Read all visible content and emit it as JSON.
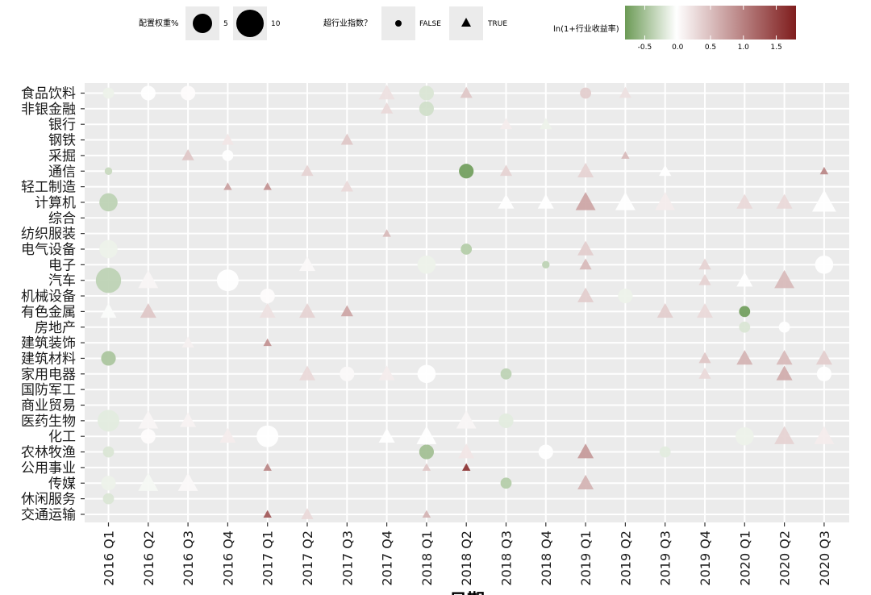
{
  "chart_data": {
    "type": "scatter",
    "xlabel": "日期",
    "x_ticks": [
      "2016 Q1",
      "2016 Q2",
      "2016 Q3",
      "2016 Q4",
      "2017 Q1",
      "2017 Q2",
      "2017 Q3",
      "2017 Q4",
      "2018 Q1",
      "2018 Q2",
      "2018 Q3",
      "2018 Q4",
      "2019 Q1",
      "2019 Q2",
      "2019 Q3",
      "2019 Q4",
      "2020 Q1",
      "2020 Q2",
      "2020 Q3"
    ],
    "y_ticks": [
      "食品饮料",
      "非银金融",
      "银行",
      "钢铁",
      "采掘",
      "通信",
      "轻工制造",
      "计算机",
      "综合",
      "纺织服装",
      "电气设备",
      "电子",
      "汽车",
      "机械设备",
      "有色金属",
      "房地产",
      "建筑装饰",
      "建筑材料",
      "家用电器",
      "国防军工",
      "商业贸易",
      "医药生物",
      "化工",
      "农林牧渔",
      "公用事业",
      "传媒",
      "休闲服务",
      "交通运输"
    ],
    "legend": {
      "size_title": "配置权重%",
      "size_labels": [
        "5",
        "10"
      ],
      "shape_title": "超行业指数？",
      "shape_labels": [
        "FALSE",
        "TRUE"
      ],
      "color_title": "ln(1+行业收益率)",
      "color_ticks": [
        "-0.5",
        "0.0",
        "0.5",
        "1.0",
        "1.5"
      ],
      "color_range": [
        -0.8,
        1.8
      ],
      "color_low": "#6b9a55",
      "color_mid": "#ffffff",
      "color_high": "#7f1d1d"
    },
    "grid": true,
    "points": [
      {
        "x": "2016 Q1",
        "y": "计算机",
        "weight": 4,
        "above_index": false,
        "ln_return": -0.35
      },
      {
        "x": "2016 Q1",
        "y": "汽车",
        "weight": 6,
        "above_index": false,
        "ln_return": -0.35
      },
      {
        "x": "2016 Q1",
        "y": "建筑材料",
        "weight": 3,
        "above_index": false,
        "ln_return": -0.45
      },
      {
        "x": "2016 Q1",
        "y": "医药生物",
        "weight": 5,
        "above_index": false,
        "ln_return": -0.15
      },
      {
        "x": "2016 Q1",
        "y": "电气设备",
        "weight": 4,
        "above_index": false,
        "ln_return": -0.1
      },
      {
        "x": "2016 Q1",
        "y": "农林牧渔",
        "weight": 2,
        "above_index": false,
        "ln_return": -0.2
      },
      {
        "x": "2016 Q1",
        "y": "传媒",
        "weight": 3,
        "above_index": false,
        "ln_return": -0.1
      },
      {
        "x": "2016 Q1",
        "y": "休闲服务",
        "weight": 2,
        "above_index": false,
        "ln_return": -0.2
      },
      {
        "x": "2016 Q1",
        "y": "通信",
        "weight": 1,
        "above_index": false,
        "ln_return": -0.3
      },
      {
        "x": "2016 Q1",
        "y": "有色金属",
        "weight": 3,
        "above_index": true,
        "ln_return": -0.02
      },
      {
        "x": "2016 Q1",
        "y": "食品饮料",
        "weight": 2,
        "above_index": false,
        "ln_return": -0.1
      },
      {
        "x": "2016 Q2",
        "y": "食品饮料",
        "weight": 3,
        "above_index": false,
        "ln_return": 0.0
      },
      {
        "x": "2016 Q2",
        "y": "有色金属",
        "weight": 3,
        "above_index": true,
        "ln_return": 0.45
      },
      {
        "x": "2016 Q2",
        "y": "传媒",
        "weight": 4,
        "above_index": true,
        "ln_return": -0.05
      },
      {
        "x": "2016 Q2",
        "y": "化工",
        "weight": 3,
        "above_index": false,
        "ln_return": 0.02
      },
      {
        "x": "2016 Q2",
        "y": "汽车",
        "weight": 4,
        "above_index": true,
        "ln_return": 0.08
      },
      {
        "x": "2016 Q2",
        "y": "医药生物",
        "weight": 4,
        "above_index": true,
        "ln_return": 0.08
      },
      {
        "x": "2016 Q3",
        "y": "食品饮料",
        "weight": 3,
        "above_index": false,
        "ln_return": 0.02
      },
      {
        "x": "2016 Q3",
        "y": "采掘",
        "weight": 2,
        "above_index": true,
        "ln_return": 0.45
      },
      {
        "x": "2016 Q3",
        "y": "传媒",
        "weight": 4,
        "above_index": true,
        "ln_return": 0.05
      },
      {
        "x": "2016 Q3",
        "y": "建筑装饰",
        "weight": 2,
        "above_index": true,
        "ln_return": 0.12
      },
      {
        "x": "2016 Q3",
        "y": "医药生物",
        "weight": 3,
        "above_index": true,
        "ln_return": 0.1
      },
      {
        "x": "2016 Q4",
        "y": "汽车",
        "weight": 5,
        "above_index": false,
        "ln_return": 0.0
      },
      {
        "x": "2016 Q4",
        "y": "采掘",
        "weight": 2,
        "above_index": false,
        "ln_return": 0.0
      },
      {
        "x": "2016 Q4",
        "y": "轻工制造",
        "weight": 1,
        "above_index": true,
        "ln_return": 0.75
      },
      {
        "x": "2016 Q4",
        "y": "化工",
        "weight": 3,
        "above_index": true,
        "ln_return": 0.15
      },
      {
        "x": "2016 Q4",
        "y": "钢铁",
        "weight": 2,
        "above_index": true,
        "ln_return": 0.2
      },
      {
        "x": "2017 Q1",
        "y": "轻工制造",
        "weight": 1,
        "above_index": true,
        "ln_return": 0.85
      },
      {
        "x": "2017 Q1",
        "y": "建筑装饰",
        "weight": 1,
        "above_index": true,
        "ln_return": 0.85
      },
      {
        "x": "2017 Q1",
        "y": "公用事业",
        "weight": 1,
        "above_index": true,
        "ln_return": 0.95
      },
      {
        "x": "2017 Q1",
        "y": "交通运输",
        "weight": 1,
        "above_index": true,
        "ln_return": 1.3
      },
      {
        "x": "2017 Q1",
        "y": "化工",
        "weight": 5,
        "above_index": false,
        "ln_return": 0.0
      },
      {
        "x": "2017 Q1",
        "y": "机械设备",
        "weight": 3,
        "above_index": false,
        "ln_return": 0.02
      },
      {
        "x": "2017 Q1",
        "y": "有色金属",
        "weight": 3,
        "above_index": true,
        "ln_return": 0.25
      },
      {
        "x": "2017 Q2",
        "y": "有色金属",
        "weight": 3,
        "above_index": true,
        "ln_return": 0.35
      },
      {
        "x": "2017 Q2",
        "y": "家用电器",
        "weight": 3,
        "above_index": true,
        "ln_return": 0.3
      },
      {
        "x": "2017 Q2",
        "y": "电子",
        "weight": 3,
        "above_index": true,
        "ln_return": 0.05
      },
      {
        "x": "2017 Q2",
        "y": "通信",
        "weight": 2,
        "above_index": true,
        "ln_return": 0.35
      },
      {
        "x": "2017 Q2",
        "y": "交通运输",
        "weight": 2,
        "above_index": true,
        "ln_return": 0.3
      },
      {
        "x": "2017 Q3",
        "y": "钢铁",
        "weight": 2,
        "above_index": true,
        "ln_return": 0.45
      },
      {
        "x": "2017 Q3",
        "y": "有色金属",
        "weight": 2,
        "above_index": true,
        "ln_return": 0.7
      },
      {
        "x": "2017 Q3",
        "y": "家用电器",
        "weight": 3,
        "above_index": false,
        "ln_return": 0.05
      },
      {
        "x": "2017 Q3",
        "y": "轻工制造",
        "weight": 2,
        "above_index": true,
        "ln_return": 0.3
      },
      {
        "x": "2017 Q4",
        "y": "食品饮料",
        "weight": 3,
        "above_index": true,
        "ln_return": 0.25
      },
      {
        "x": "2017 Q4",
        "y": "非银金融",
        "weight": 2,
        "above_index": true,
        "ln_return": 0.3
      },
      {
        "x": "2017 Q4",
        "y": "纺织服装",
        "weight": 1,
        "above_index": true,
        "ln_return": 0.55
      },
      {
        "x": "2017 Q4",
        "y": "家用电器",
        "weight": 3,
        "above_index": true,
        "ln_return": 0.15
      },
      {
        "x": "2017 Q4",
        "y": "化工",
        "weight": 3,
        "above_index": true,
        "ln_return": 0.0
      },
      {
        "x": "2018 Q1",
        "y": "食品饮料",
        "weight": 3,
        "above_index": false,
        "ln_return": -0.2
      },
      {
        "x": "2018 Q1",
        "y": "非银金融",
        "weight": 3,
        "above_index": false,
        "ln_return": -0.25
      },
      {
        "x": "2018 Q1",
        "y": "农林牧渔",
        "weight": 3,
        "above_index": false,
        "ln_return": -0.5
      },
      {
        "x": "2018 Q1",
        "y": "家用电器",
        "weight": 4,
        "above_index": false,
        "ln_return": 0.0
      },
      {
        "x": "2018 Q1",
        "y": "化工",
        "weight": 4,
        "above_index": true,
        "ln_return": 0.0
      },
      {
        "x": "2018 Q1",
        "y": "电子",
        "weight": 4,
        "above_index": false,
        "ln_return": -0.1
      },
      {
        "x": "2018 Q1",
        "y": "公用事业",
        "weight": 1,
        "above_index": true,
        "ln_return": 0.45
      },
      {
        "x": "2018 Q1",
        "y": "交通运输",
        "weight": 1,
        "above_index": true,
        "ln_return": 0.6
      },
      {
        "x": "2018 Q2",
        "y": "食品饮料",
        "weight": 2,
        "above_index": true,
        "ln_return": 0.45
      },
      {
        "x": "2018 Q2",
        "y": "通信",
        "weight": 3,
        "above_index": false,
        "ln_return": -0.75
      },
      {
        "x": "2018 Q2",
        "y": "电气设备",
        "weight": 2,
        "above_index": false,
        "ln_return": -0.4
      },
      {
        "x": "2018 Q2",
        "y": "公用事业",
        "weight": 1,
        "above_index": true,
        "ln_return": 1.6
      },
      {
        "x": "2018 Q2",
        "y": "农林牧渔",
        "weight": 3,
        "above_index": true,
        "ln_return": 0.2
      },
      {
        "x": "2018 Q2",
        "y": "医药生物",
        "weight": 4,
        "above_index": true,
        "ln_return": 0.08
      },
      {
        "x": "2018 Q3",
        "y": "通信",
        "weight": 2,
        "above_index": true,
        "ln_return": 0.35
      },
      {
        "x": "2018 Q3",
        "y": "家用电器",
        "weight": 2,
        "above_index": false,
        "ln_return": -0.35
      },
      {
        "x": "2018 Q3",
        "y": "传媒",
        "weight": 2,
        "above_index": false,
        "ln_return": -0.4
      },
      {
        "x": "2018 Q3",
        "y": "银行",
        "weight": 2,
        "above_index": true,
        "ln_return": 0.15
      },
      {
        "x": "2018 Q3",
        "y": "计算机",
        "weight": 3,
        "above_index": true,
        "ln_return": 0.0
      },
      {
        "x": "2018 Q3",
        "y": "医药生物",
        "weight": 3,
        "above_index": false,
        "ln_return": -0.15
      },
      {
        "x": "2018 Q4",
        "y": "电子",
        "weight": 1,
        "above_index": false,
        "ln_return": -0.35
      },
      {
        "x": "2018 Q4",
        "y": "农林牧渔",
        "weight": 3,
        "above_index": false,
        "ln_return": 0.0
      },
      {
        "x": "2018 Q4",
        "y": "计算机",
        "weight": 3,
        "above_index": true,
        "ln_return": 0.0
      },
      {
        "x": "2018 Q4",
        "y": "银行",
        "weight": 2,
        "above_index": true,
        "ln_return": -0.1
      },
      {
        "x": "2019 Q1",
        "y": "计算机",
        "weight": 4,
        "above_index": true,
        "ln_return": 0.7
      },
      {
        "x": "2019 Q1",
        "y": "通信",
        "weight": 3,
        "above_index": true,
        "ln_return": 0.35
      },
      {
        "x": "2019 Q1",
        "y": "农林牧渔",
        "weight": 3,
        "above_index": true,
        "ln_return": 0.8
      },
      {
        "x": "2019 Q1",
        "y": "传媒",
        "weight": 3,
        "above_index": true,
        "ln_return": 0.6
      },
      {
        "x": "2019 Q1",
        "y": "电子",
        "weight": 2,
        "above_index": true,
        "ln_return": 0.55
      },
      {
        "x": "2019 Q1",
        "y": "机械设备",
        "weight": 3,
        "above_index": true,
        "ln_return": 0.4
      },
      {
        "x": "2019 Q1",
        "y": "食品饮料",
        "weight": 2,
        "above_index": false,
        "ln_return": 0.4
      },
      {
        "x": "2019 Q1",
        "y": "电气设备",
        "weight": 3,
        "above_index": true,
        "ln_return": 0.4
      },
      {
        "x": "2019 Q2",
        "y": "计算机",
        "weight": 4,
        "above_index": true,
        "ln_return": 0.0
      },
      {
        "x": "2019 Q2",
        "y": "采掘",
        "weight": 1,
        "above_index": true,
        "ln_return": 0.55
      },
      {
        "x": "2019 Q2",
        "y": "机械设备",
        "weight": 3,
        "above_index": false,
        "ln_return": -0.1
      },
      {
        "x": "2019 Q2",
        "y": "食品饮料",
        "weight": 2,
        "above_index": true,
        "ln_return": 0.25
      },
      {
        "x": "2019 Q3",
        "y": "通信",
        "weight": 2,
        "above_index": true,
        "ln_return": 0.0
      },
      {
        "x": "2019 Q3",
        "y": "有色金属",
        "weight": 3,
        "above_index": true,
        "ln_return": 0.4
      },
      {
        "x": "2019 Q3",
        "y": "农林牧渔",
        "weight": 2,
        "above_index": false,
        "ln_return": -0.15
      },
      {
        "x": "2019 Q3",
        "y": "计算机",
        "weight": 4,
        "above_index": true,
        "ln_return": 0.15
      },
      {
        "x": "2019 Q4",
        "y": "电子",
        "weight": 2,
        "above_index": true,
        "ln_return": 0.35
      },
      {
        "x": "2019 Q4",
        "y": "汽车",
        "weight": 2,
        "above_index": true,
        "ln_return": 0.35
      },
      {
        "x": "2019 Q4",
        "y": "有色金属",
        "weight": 3,
        "above_index": true,
        "ln_return": 0.3
      },
      {
        "x": "2019 Q4",
        "y": "建筑材料",
        "weight": 2,
        "above_index": true,
        "ln_return": 0.45
      },
      {
        "x": "2019 Q4",
        "y": "家用电器",
        "weight": 2,
        "above_index": true,
        "ln_return": 0.3
      },
      {
        "x": "2020 Q1",
        "y": "计算机",
        "weight": 3,
        "above_index": true,
        "ln_return": 0.3
      },
      {
        "x": "2020 Q1",
        "y": "有色金属",
        "weight": 2,
        "above_index": false,
        "ln_return": -0.75
      },
      {
        "x": "2020 Q1",
        "y": "房地产",
        "weight": 2,
        "above_index": false,
        "ln_return": -0.2
      },
      {
        "x": "2020 Q1",
        "y": "建筑材料",
        "weight": 3,
        "above_index": true,
        "ln_return": 0.6
      },
      {
        "x": "2020 Q1",
        "y": "汽车",
        "weight": 3,
        "above_index": true,
        "ln_return": 0.0
      },
      {
        "x": "2020 Q1",
        "y": "化工",
        "weight": 4,
        "above_index": false,
        "ln_return": -0.1
      },
      {
        "x": "2020 Q2",
        "y": "计算机",
        "weight": 3,
        "above_index": true,
        "ln_return": 0.3
      },
      {
        "x": "2020 Q2",
        "y": "汽车",
        "weight": 4,
        "above_index": true,
        "ln_return": 0.55
      },
      {
        "x": "2020 Q2",
        "y": "建筑材料",
        "weight": 3,
        "above_index": true,
        "ln_return": 0.55
      },
      {
        "x": "2020 Q2",
        "y": "家用电器",
        "weight": 3,
        "above_index": true,
        "ln_return": 0.65
      },
      {
        "x": "2020 Q2",
        "y": "房地产",
        "weight": 2,
        "above_index": false,
        "ln_return": 0.0
      },
      {
        "x": "2020 Q2",
        "y": "化工",
        "weight": 4,
        "above_index": true,
        "ln_return": 0.35
      },
      {
        "x": "2020 Q3",
        "y": "计算机",
        "weight": 5,
        "above_index": true,
        "ln_return": 0.0
      },
      {
        "x": "2020 Q3",
        "y": "通信",
        "weight": 1,
        "above_index": true,
        "ln_return": 0.95
      },
      {
        "x": "2020 Q3",
        "y": "电子",
        "weight": 4,
        "above_index": false,
        "ln_return": 0.0
      },
      {
        "x": "2020 Q3",
        "y": "建筑材料",
        "weight": 3,
        "above_index": true,
        "ln_return": 0.4
      },
      {
        "x": "2020 Q3",
        "y": "家用电器",
        "weight": 3,
        "above_index": false,
        "ln_return": 0.0
      },
      {
        "x": "2020 Q3",
        "y": "化工",
        "weight": 4,
        "above_index": true,
        "ln_return": 0.15
      }
    ]
  }
}
